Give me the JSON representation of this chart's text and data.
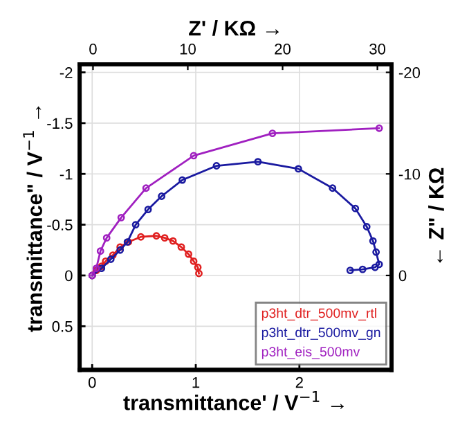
{
  "chart_data": {
    "type": "line",
    "xlabel": "transmittance' / V$^{−1}$ →",
    "ylabel": "transmittance\" / V$^{−1}$ →",
    "x2label": "Z' / KΩ →",
    "y2label": "← Z\" / KΩ",
    "xlim": [
      -0.12,
      2.89
    ],
    "xticks": [
      0,
      1,
      2
    ],
    "ylim": [
      0.93,
      -2.08
    ],
    "yticks": [
      {
        "value": -2,
        "label": "-2"
      },
      {
        "value": -1.5,
        "label": "-1.5"
      },
      {
        "value": -1,
        "label": "-1"
      },
      {
        "value": -0.5,
        "label": "-0.5"
      },
      0,
      0.5
    ],
    "x2lim": [
      -1.4,
      31.5
    ],
    "x2ticks": [
      0,
      10,
      20,
      30
    ],
    "y2lim": [
      9.3,
      -20.8
    ],
    "y2ticks": [
      {
        "value": -20,
        "label": "-20"
      },
      {
        "value": -10,
        "label": "-10"
      },
      0
    ],
    "grid": true,
    "legend": "bottom right",
    "marker": "circle",
    "line_style": "solid",
    "series": [
      {
        "name": "p3ht_dtr_500mv_rtl",
        "color": "#e02020",
        "x": [
          0,
          0.04,
          0.09,
          0.13,
          0.2,
          0.27,
          0.35,
          0.47,
          0.62,
          0.7,
          0.78,
          0.86,
          0.93,
          0.98,
          1.02,
          1.03
        ],
        "values": [
          0,
          -0.05,
          -0.09,
          -0.14,
          -0.2,
          -0.28,
          -0.33,
          -0.38,
          -0.39,
          -0.37,
          -0.34,
          -0.28,
          -0.21,
          -0.14,
          -0.08,
          -0.02
        ]
      },
      {
        "name": "p3ht_dtr_500mv_gn",
        "color": "#1a1aa0",
        "x": [
          0,
          0.09,
          0.18,
          0.27,
          0.34,
          0.42,
          0.54,
          0.67,
          0.87,
          1.2,
          1.6,
          1.99,
          2.32,
          2.54,
          2.65,
          2.71,
          2.74,
          2.77,
          2.73,
          2.61,
          2.49
        ],
        "values": [
          0,
          -0.07,
          -0.16,
          -0.25,
          -0.33,
          -0.5,
          -0.65,
          -0.78,
          -0.94,
          -1.08,
          -1.12,
          -1.05,
          -0.86,
          -0.66,
          -0.48,
          -0.34,
          -0.23,
          -0.11,
          -0.08,
          -0.06,
          -0.05
        ]
      },
      {
        "name": "p3ht_eis_500mv",
        "color": "#a020c0",
        "x": [
          0,
          0.04,
          0.08,
          0.14,
          0.28,
          0.52,
          0.98,
          1.74,
          2.77
        ],
        "values": [
          0,
          -0.07,
          -0.24,
          -0.37,
          -0.57,
          -0.86,
          -1.18,
          -1.4,
          -1.45
        ]
      }
    ]
  }
}
